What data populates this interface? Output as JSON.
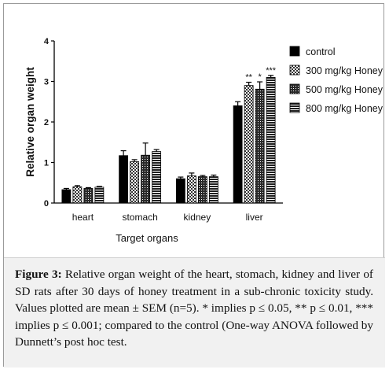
{
  "chart_data": {
    "type": "bar",
    "ylabel": "Relative organ weight",
    "xlabel": "Target organs",
    "ylim": [
      0,
      4
    ],
    "yticks": [
      "0",
      "1",
      "2",
      "3",
      "4"
    ],
    "categories": [
      "heart",
      "stomach",
      "kidney",
      "liver"
    ],
    "series": [
      {
        "name": "control",
        "values": [
          0.33,
          1.17,
          0.6,
          2.4
        ],
        "errors": [
          0.03,
          0.12,
          0.04,
          0.1
        ],
        "pattern": "solid",
        "color": "#000000"
      },
      {
        "name": "300 mg/kg Honey",
        "values": [
          0.4,
          1.02,
          0.67,
          2.9
        ],
        "errors": [
          0.03,
          0.05,
          0.07,
          0.08
        ],
        "pattern": "checker",
        "color": "#555555"
      },
      {
        "name": "500 mg/kg Honey",
        "values": [
          0.36,
          1.18,
          0.65,
          2.81
        ],
        "errors": [
          0.02,
          0.3,
          0.03,
          0.18
        ],
        "pattern": "grid",
        "color": "#333333"
      },
      {
        "name": "800 mg/kg Honey",
        "values": [
          0.39,
          1.27,
          0.65,
          3.1
        ],
        "errors": [
          0.02,
          0.05,
          0.04,
          0.05
        ],
        "pattern": "hstripes",
        "color": "#222222"
      }
    ],
    "annotations": [
      {
        "category": "liver",
        "series": "300 mg/kg Honey",
        "text": "**"
      },
      {
        "category": "liver",
        "series": "500 mg/kg Honey",
        "text": "*"
      },
      {
        "category": "liver",
        "series": "800 mg/kg Honey",
        "text": "***"
      }
    ],
    "legend_position": "top-right"
  },
  "caption": {
    "label": "Figure 3:",
    "text": " Relative organ weight of the heart, stomach, kidney and liver of SD rats after 30 days of honey treatment in a sub-chronic toxicity study. Values plotted are mean ± SEM (n=5). * implies p ≤ 0.05, ** p ≤ 0.01, *** implies p ≤ 0.001; compared to the control (One-way ANOVA followed by Dunnett’s post hoc test."
  }
}
